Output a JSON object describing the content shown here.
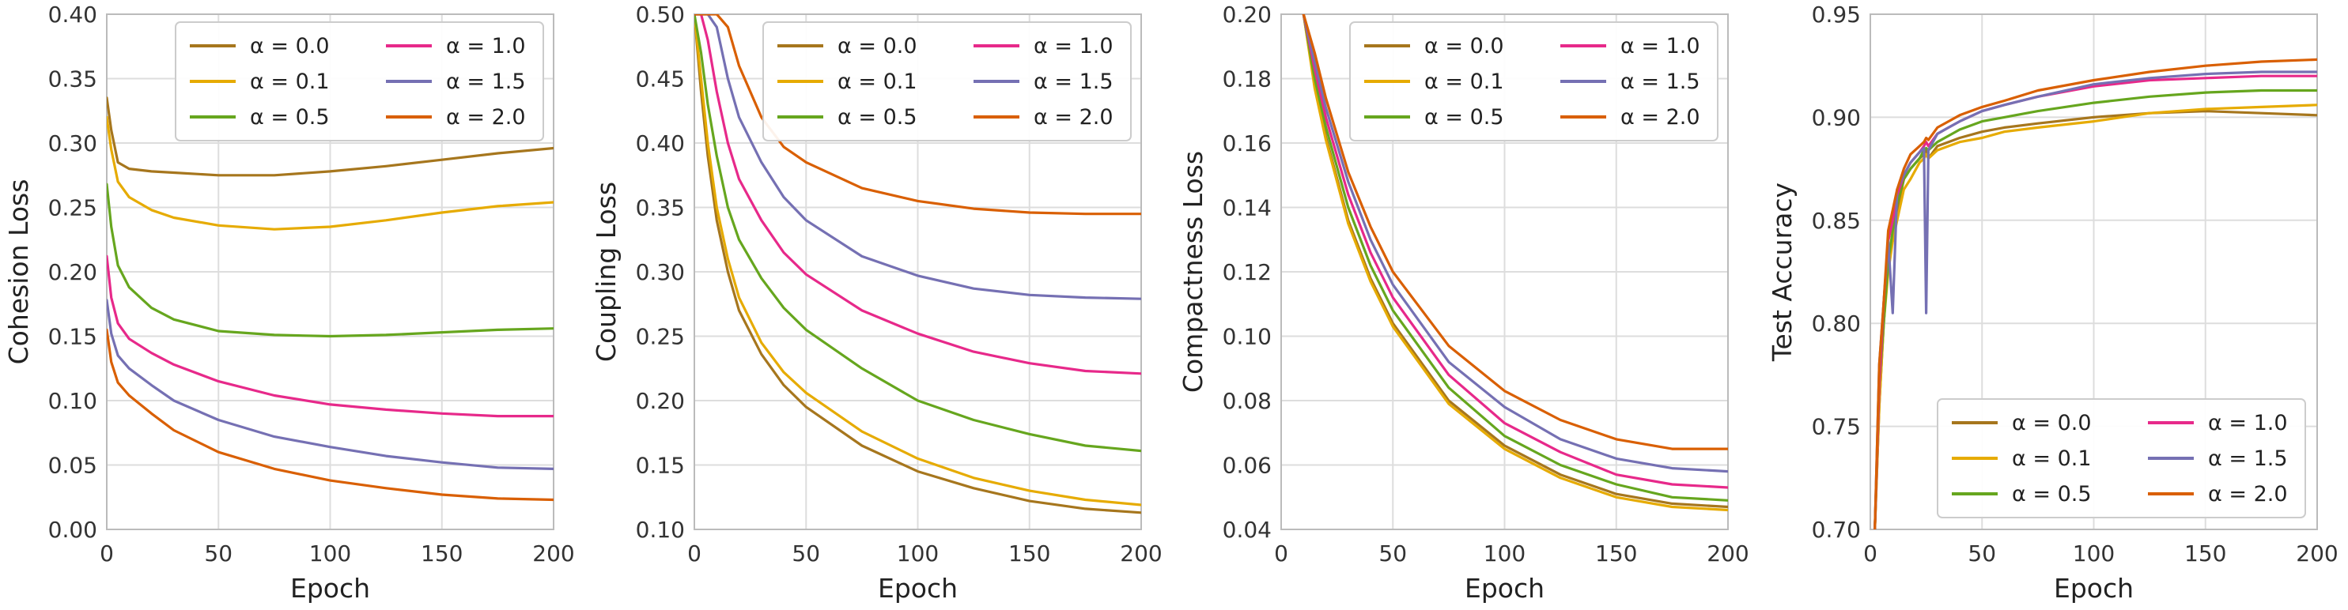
{
  "colors": {
    "a00": "#a6761d",
    "a01": "#e6ab02",
    "a05": "#66a61e",
    "a10": "#e7298a",
    "a15": "#7570b3",
    "a20": "#d95f02",
    "grid": "#dddddd",
    "spine": "#bbbbbb"
  },
  "chart_data": [
    {
      "type": "line",
      "xlabel": "Epoch",
      "ylabel": "Cohesion Loss",
      "xlim": [
        0,
        200
      ],
      "ylim": [
        0.0,
        0.4
      ],
      "xticks": [
        "0",
        "50",
        "100",
        "150",
        "200"
      ],
      "yticks": [
        "0.00",
        "0.05",
        "0.10",
        "0.15",
        "0.20",
        "0.25",
        "0.30",
        "0.35",
        "0.40"
      ],
      "grid": true,
      "legend": "top-right",
      "x": [
        0,
        2,
        5,
        10,
        20,
        30,
        50,
        75,
        100,
        125,
        150,
        175,
        200
      ],
      "series": [
        {
          "name": "α = 0.0",
          "color_key": "a00",
          "values": [
            0.335,
            0.31,
            0.285,
            0.28,
            0.278,
            0.277,
            0.275,
            0.275,
            0.278,
            0.282,
            0.287,
            0.292,
            0.296
          ]
        },
        {
          "name": "α = 0.1",
          "color_key": "a01",
          "values": [
            0.32,
            0.295,
            0.27,
            0.258,
            0.248,
            0.242,
            0.236,
            0.233,
            0.235,
            0.24,
            0.246,
            0.251,
            0.254
          ]
        },
        {
          "name": "α = 0.5",
          "color_key": "a05",
          "values": [
            0.268,
            0.235,
            0.205,
            0.188,
            0.172,
            0.163,
            0.154,
            0.151,
            0.15,
            0.151,
            0.153,
            0.155,
            0.156
          ]
        },
        {
          "name": "α = 1.0",
          "color_key": "a10",
          "values": [
            0.212,
            0.18,
            0.16,
            0.148,
            0.137,
            0.128,
            0.115,
            0.104,
            0.097,
            0.093,
            0.09,
            0.088,
            0.088
          ]
        },
        {
          "name": "α = 1.5",
          "color_key": "a15",
          "values": [
            0.178,
            0.152,
            0.135,
            0.125,
            0.112,
            0.1,
            0.085,
            0.072,
            0.064,
            0.057,
            0.052,
            0.048,
            0.047
          ]
        },
        {
          "name": "α = 2.0",
          "color_key": "a20",
          "values": [
            0.155,
            0.13,
            0.114,
            0.104,
            0.09,
            0.077,
            0.06,
            0.047,
            0.038,
            0.032,
            0.027,
            0.024,
            0.023
          ]
        }
      ]
    },
    {
      "type": "line",
      "xlabel": "Epoch",
      "ylabel": "Coupling Loss",
      "xlim": [
        0,
        200
      ],
      "ylim": [
        0.1,
        0.5
      ],
      "xticks": [
        "0",
        "50",
        "100",
        "150",
        "200"
      ],
      "yticks": [
        "0.10",
        "0.15",
        "0.20",
        "0.25",
        "0.30",
        "0.35",
        "0.40",
        "0.45",
        "0.50"
      ],
      "grid": true,
      "legend": "top-right",
      "x": [
        0,
        3,
        6,
        10,
        15,
        20,
        30,
        40,
        50,
        75,
        100,
        125,
        150,
        175,
        200
      ],
      "series": [
        {
          "name": "α = 0.0",
          "color_key": "a00",
          "values": [
            0.5,
            0.44,
            0.39,
            0.34,
            0.3,
            0.27,
            0.236,
            0.212,
            0.195,
            0.165,
            0.145,
            0.132,
            0.122,
            0.116,
            0.113
          ]
        },
        {
          "name": "α = 0.1",
          "color_key": "a01",
          "values": [
            0.5,
            0.45,
            0.4,
            0.35,
            0.31,
            0.28,
            0.245,
            0.222,
            0.206,
            0.176,
            0.155,
            0.14,
            0.13,
            0.123,
            0.119
          ]
        },
        {
          "name": "α = 0.5",
          "color_key": "a05",
          "values": [
            0.5,
            0.47,
            0.43,
            0.39,
            0.35,
            0.325,
            0.295,
            0.272,
            0.255,
            0.225,
            0.2,
            0.185,
            0.174,
            0.165,
            0.161
          ]
        },
        {
          "name": "α = 1.0",
          "color_key": "a10",
          "values": [
            0.5,
            0.5,
            0.48,
            0.44,
            0.4,
            0.372,
            0.34,
            0.315,
            0.298,
            0.27,
            0.252,
            0.238,
            0.229,
            0.223,
            0.221
          ]
        },
        {
          "name": "α = 1.5",
          "color_key": "a15",
          "values": [
            0.5,
            0.5,
            0.5,
            0.49,
            0.45,
            0.42,
            0.385,
            0.358,
            0.34,
            0.312,
            0.297,
            0.287,
            0.282,
            0.28,
            0.279
          ]
        },
        {
          "name": "α = 2.0",
          "color_key": "a20",
          "values": [
            0.5,
            0.5,
            0.5,
            0.5,
            0.49,
            0.46,
            0.42,
            0.397,
            0.385,
            0.365,
            0.355,
            0.349,
            0.346,
            0.345,
            0.345
          ]
        }
      ]
    },
    {
      "type": "line",
      "xlabel": "Epoch",
      "ylabel": "Compactness Loss",
      "xlim": [
        0,
        200
      ],
      "ylim": [
        0.04,
        0.2
      ],
      "xticks": [
        "0",
        "50",
        "100",
        "150",
        "200"
      ],
      "yticks": [
        "0.04",
        "0.06",
        "0.08",
        "0.10",
        "0.12",
        "0.14",
        "0.16",
        "0.18",
        "0.20"
      ],
      "grid": true,
      "legend": "top-right",
      "x": [
        10,
        15,
        20,
        30,
        40,
        50,
        75,
        100,
        125,
        150,
        175,
        200
      ],
      "series": [
        {
          "name": "α = 0.0",
          "color_key": "a00",
          "values": [
            0.2,
            0.178,
            0.162,
            0.136,
            0.118,
            0.104,
            0.08,
            0.066,
            0.057,
            0.051,
            0.048,
            0.047
          ]
        },
        {
          "name": "α = 0.1",
          "color_key": "a01",
          "values": [
            0.2,
            0.177,
            0.161,
            0.135,
            0.117,
            0.103,
            0.079,
            0.065,
            0.056,
            0.05,
            0.047,
            0.046
          ]
        },
        {
          "name": "α = 0.5",
          "color_key": "a05",
          "values": [
            0.2,
            0.18,
            0.165,
            0.14,
            0.122,
            0.108,
            0.084,
            0.069,
            0.06,
            0.054,
            0.05,
            0.049
          ]
        },
        {
          "name": "α = 1.0",
          "color_key": "a10",
          "values": [
            0.2,
            0.183,
            0.168,
            0.144,
            0.126,
            0.112,
            0.088,
            0.073,
            0.064,
            0.057,
            0.054,
            0.053
          ]
        },
        {
          "name": "α = 1.5",
          "color_key": "a15",
          "values": [
            0.2,
            0.185,
            0.171,
            0.148,
            0.13,
            0.116,
            0.092,
            0.078,
            0.068,
            0.062,
            0.059,
            0.058
          ]
        },
        {
          "name": "α = 2.0",
          "color_key": "a20",
          "values": [
            0.2,
            0.188,
            0.174,
            0.151,
            0.134,
            0.12,
            0.097,
            0.083,
            0.074,
            0.068,
            0.065,
            0.065
          ]
        }
      ]
    },
    {
      "type": "line",
      "xlabel": "Epoch",
      "ylabel": "Test Accuracy",
      "xlim": [
        0,
        200
      ],
      "ylim": [
        0.7,
        0.95
      ],
      "xticks": [
        "0",
        "50",
        "100",
        "150",
        "200"
      ],
      "yticks": [
        "0.70",
        "0.75",
        "0.80",
        "0.85",
        "0.90",
        "0.95"
      ],
      "grid": true,
      "legend": "bottom-right",
      "x": [
        2,
        4,
        6,
        8,
        10,
        12,
        15,
        18,
        22,
        24,
        25,
        26,
        30,
        35,
        40,
        50,
        60,
        75,
        100,
        125,
        150,
        175,
        200
      ],
      "series": [
        {
          "name": "α = 0.0",
          "color_key": "a00",
          "values": [
            0.7,
            0.76,
            0.8,
            0.83,
            0.84,
            0.855,
            0.87,
            0.875,
            0.88,
            0.882,
            0.885,
            0.88,
            0.886,
            0.888,
            0.89,
            0.893,
            0.895,
            0.897,
            0.9,
            0.902,
            0.903,
            0.902,
            0.901
          ]
        },
        {
          "name": "α = 0.1",
          "color_key": "a01",
          "values": [
            0.7,
            0.76,
            0.8,
            0.825,
            0.84,
            0.85,
            0.865,
            0.87,
            0.878,
            0.88,
            0.882,
            0.88,
            0.884,
            0.886,
            0.888,
            0.89,
            0.893,
            0.895,
            0.898,
            0.902,
            0.904,
            0.905,
            0.906
          ]
        },
        {
          "name": "α = 0.5",
          "color_key": "a05",
          "values": [
            0.7,
            0.77,
            0.8,
            0.83,
            0.845,
            0.858,
            0.87,
            0.875,
            0.88,
            0.884,
            0.885,
            0.884,
            0.888,
            0.891,
            0.894,
            0.898,
            0.9,
            0.903,
            0.907,
            0.91,
            0.912,
            0.913,
            0.913
          ]
        },
        {
          "name": "α = 1.0",
          "color_key": "a10",
          "values": [
            0.7,
            0.77,
            0.81,
            0.84,
            0.85,
            0.862,
            0.872,
            0.878,
            0.883,
            0.886,
            0.888,
            0.886,
            0.892,
            0.895,
            0.898,
            0.903,
            0.906,
            0.91,
            0.915,
            0.918,
            0.919,
            0.92,
            0.92
          ]
        },
        {
          "name": "α = 1.5",
          "color_key": "a15",
          "values": [
            0.7,
            0.78,
            0.81,
            0.84,
            0.805,
            0.865,
            0.872,
            0.878,
            0.883,
            0.885,
            0.805,
            0.884,
            0.892,
            0.895,
            0.898,
            0.903,
            0.906,
            0.91,
            0.916,
            0.919,
            0.921,
            0.922,
            0.922
          ]
        },
        {
          "name": "α = 2.0",
          "color_key": "a20",
          "values": [
            0.7,
            0.78,
            0.81,
            0.845,
            0.855,
            0.865,
            0.875,
            0.882,
            0.886,
            0.888,
            0.89,
            0.889,
            0.895,
            0.898,
            0.901,
            0.905,
            0.908,
            0.913,
            0.918,
            0.922,
            0.925,
            0.927,
            0.928
          ]
        }
      ]
    }
  ]
}
